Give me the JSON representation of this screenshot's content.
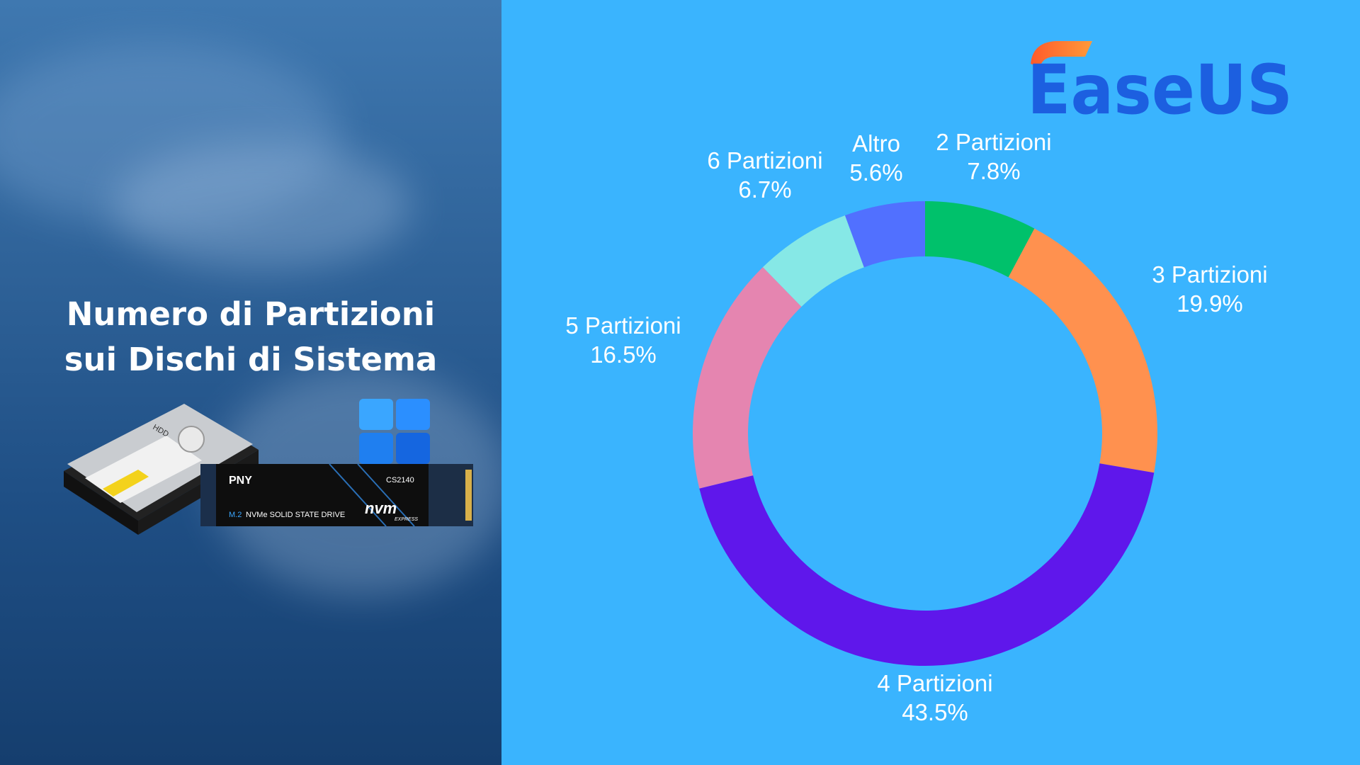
{
  "title_lines": [
    "Numero di Partizioni",
    "sui Dischi di Sistema"
  ],
  "logo_text": "EaseUS",
  "hardware": {
    "hdd_label": "HDD",
    "ssd_brand": "PNY",
    "ssd_model": "CS2140",
    "ssd_form": "M.2",
    "ssd_desc": "NVMe SOLID STATE DRIVE",
    "ssd_logo": "nvm",
    "ssd_logo_sub": "EXPRESS"
  },
  "colors": {
    "background": "#3ab4fe",
    "left_panel": "#2c5f95"
  },
  "chart_data": {
    "type": "pie",
    "variant": "donut",
    "title": "",
    "categories": [
      "2 Partizioni",
      "3 Partizioni",
      "4 Partizioni",
      "5 Partizioni",
      "6 Partizioni",
      "Altro"
    ],
    "values": [
      7.8,
      19.9,
      43.5,
      16.5,
      6.7,
      5.6
    ],
    "value_labels": [
      "7.8%",
      "19.9%",
      "43.5%",
      "16.5%",
      "6.7%",
      "5.6%"
    ],
    "colors": [
      "#00c16b",
      "#ff914f",
      "#5f17eb",
      "#e585b0",
      "#86e8e6",
      "#5170ff"
    ],
    "legend": "none"
  }
}
